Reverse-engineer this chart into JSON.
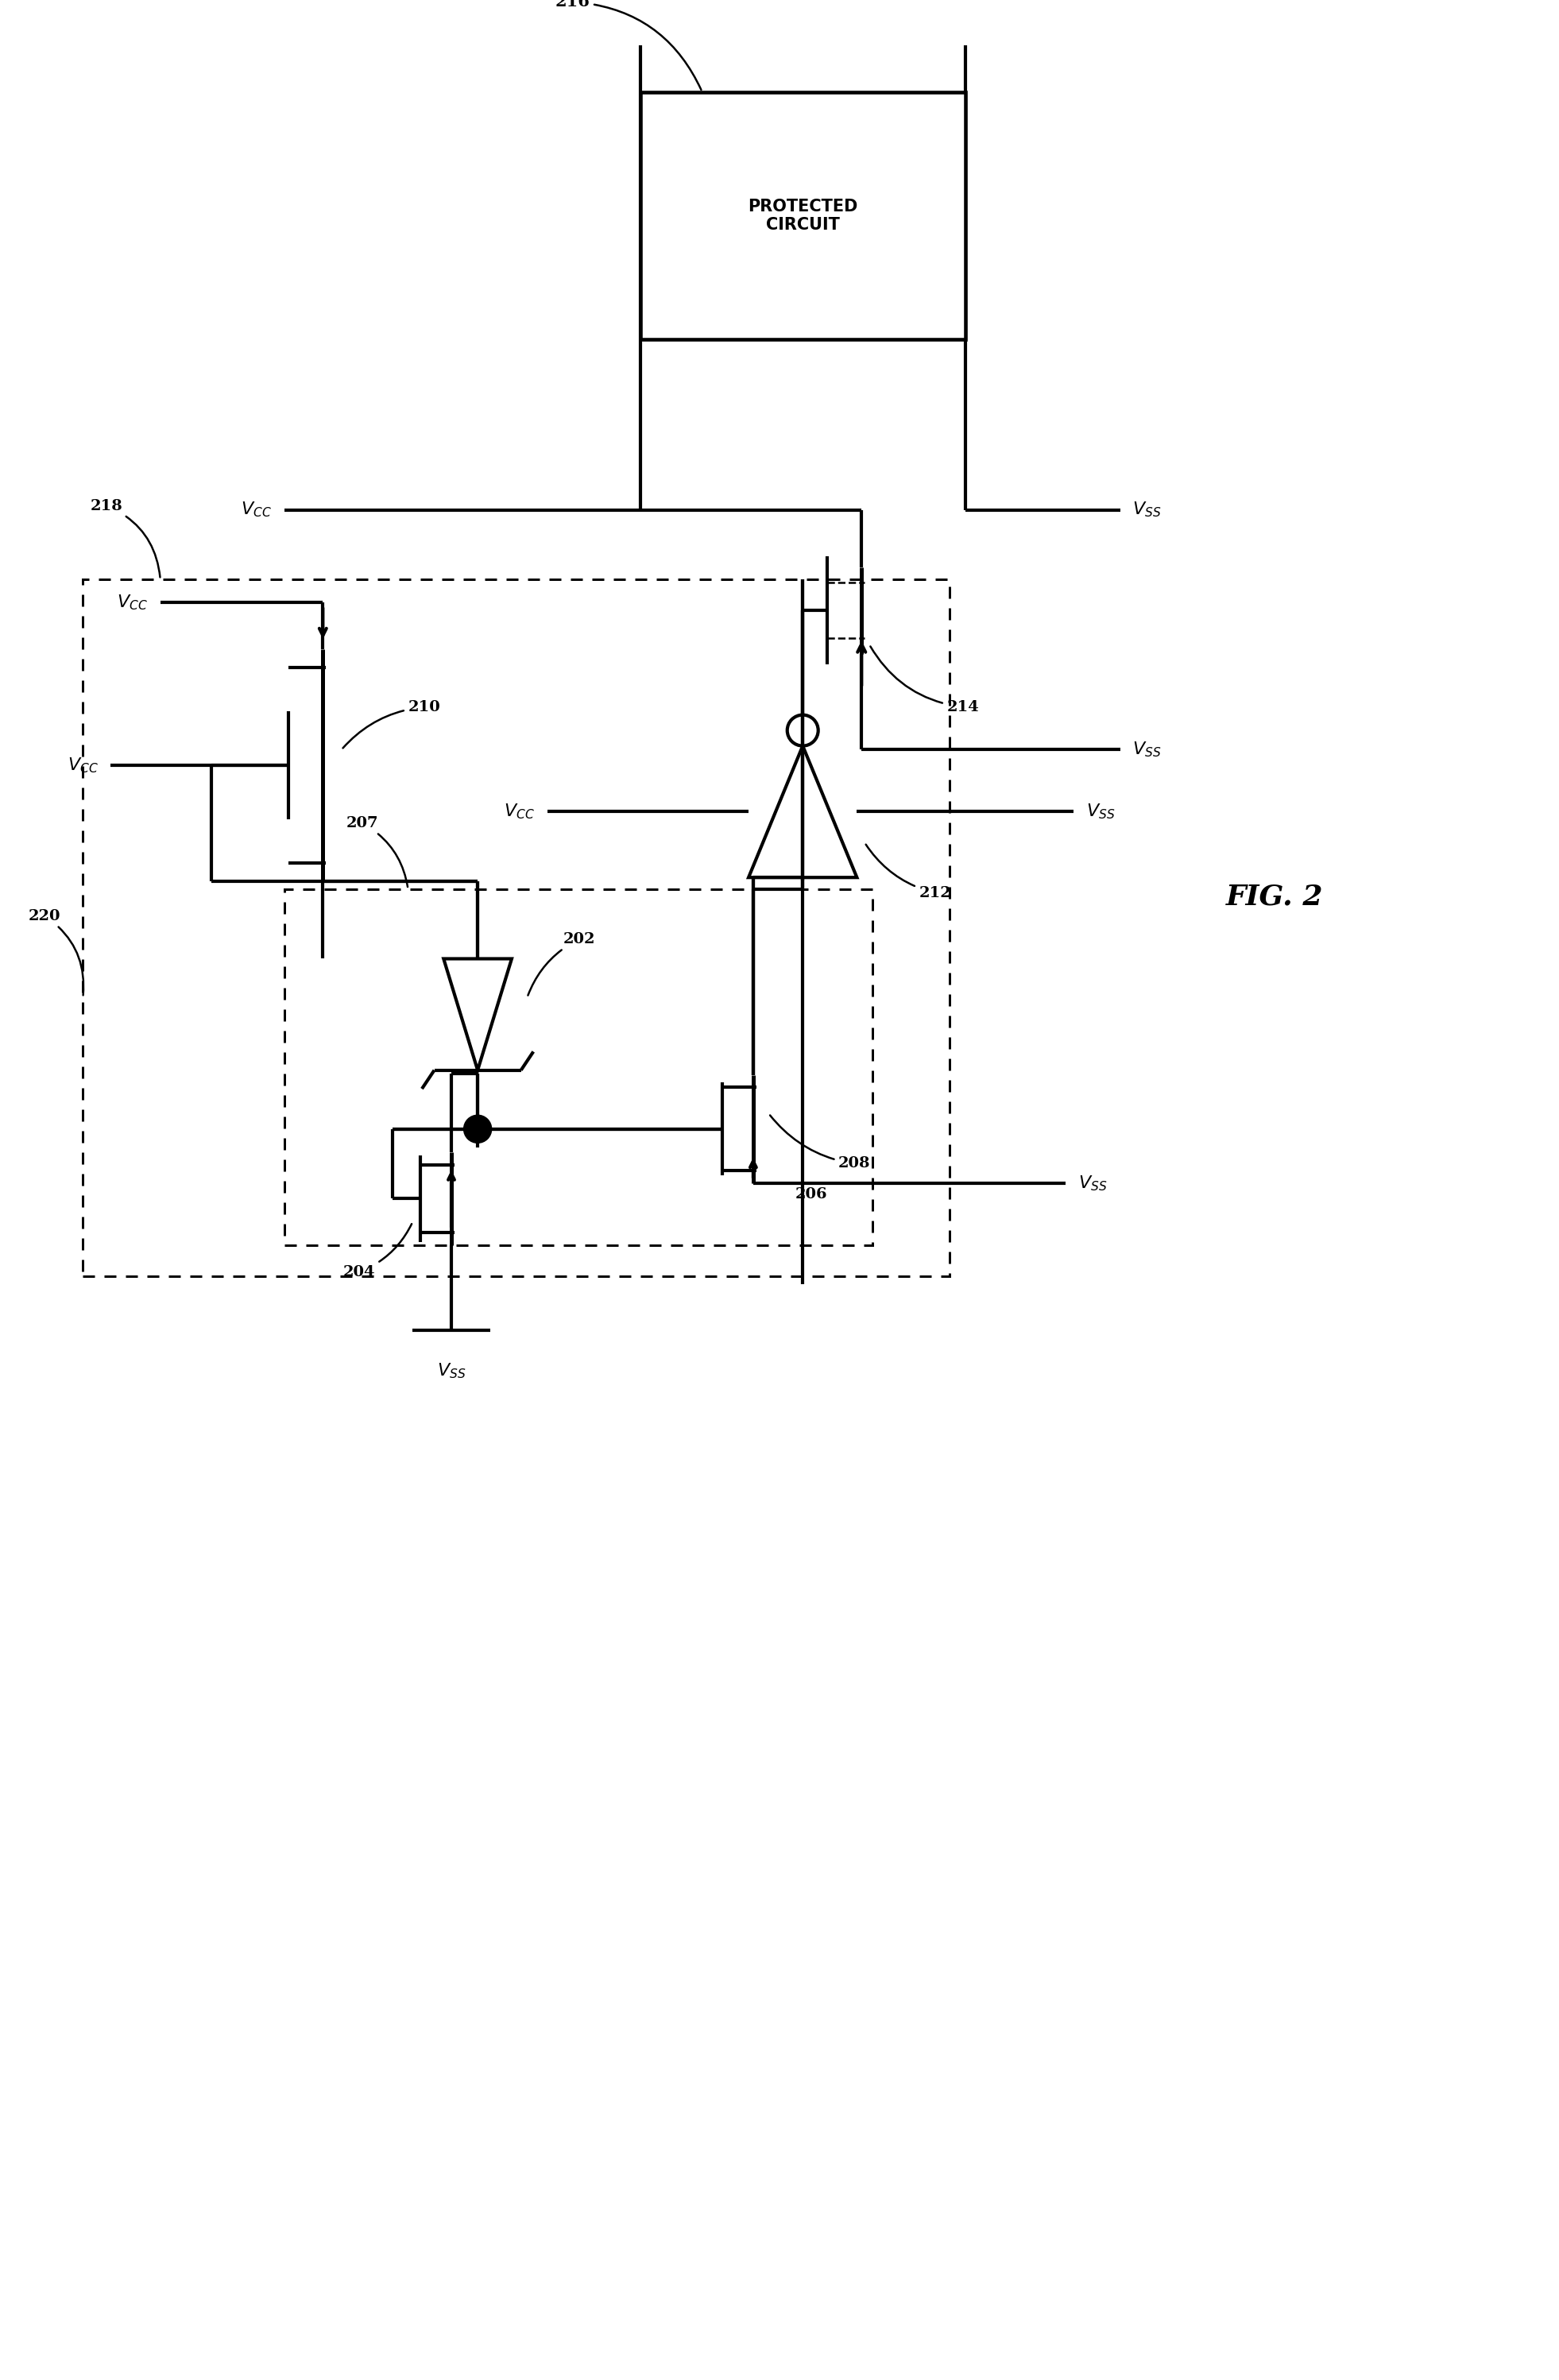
{
  "bg_color": "#ffffff",
  "line_color": "#000000",
  "lw": 3.0,
  "lw_thin": 1.8,
  "fig_width": 19.62,
  "fig_height": 29.95,
  "fig2_label": "FIG. 2"
}
